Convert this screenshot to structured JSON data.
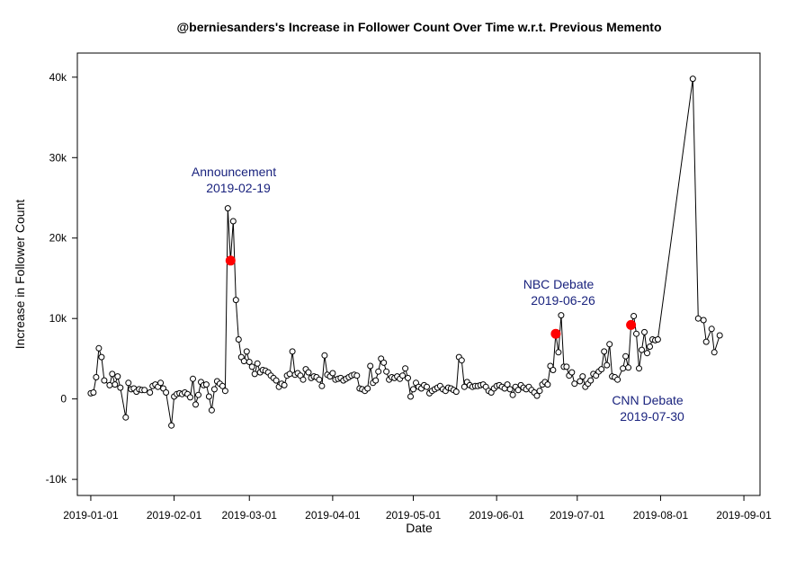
{
  "chart_data": {
    "type": "line",
    "title": "@berniesanders's Increase in Follower Count Over Time w.r.t. Previous Memento",
    "xlabel": "Date",
    "ylabel": "Increase in Follower Count",
    "ylim": [
      -12000,
      43000
    ],
    "xlim": [
      "2018-12-27",
      "2019-09-07"
    ],
    "y_ticks": [
      -10000,
      0,
      10000,
      20000,
      30000,
      40000
    ],
    "y_tick_labels": [
      "-10k",
      "0",
      "10k",
      "20k",
      "30k",
      "40k"
    ],
    "x_ticks": [
      "2019-01-01",
      "2019-02-01",
      "2019-03-01",
      "2019-04-01",
      "2019-05-01",
      "2019-06-01",
      "2019-07-01",
      "2019-08-01",
      "2019-09-01"
    ],
    "line_color": "#000000",
    "highlight_color": "#ff0000",
    "annotation_color": "#1a237e",
    "series": [
      {
        "points": [
          [
            "2019-01-01",
            700
          ],
          [
            "2019-01-02",
            800
          ],
          [
            "2019-01-03",
            2700
          ],
          [
            "2019-01-04",
            6300
          ],
          [
            "2019-01-05",
            5200
          ],
          [
            "2019-01-06",
            2300
          ],
          [
            "2019-01-08",
            1700
          ],
          [
            "2019-01-09",
            3100
          ],
          [
            "2019-01-10",
            1800
          ],
          [
            "2019-01-11",
            2800
          ],
          [
            "2019-01-12",
            1400
          ],
          [
            "2019-01-14",
            -2300
          ],
          [
            "2019-01-15",
            2000
          ],
          [
            "2019-01-16",
            1200
          ],
          [
            "2019-01-17",
            1300
          ],
          [
            "2019-01-18",
            900
          ],
          [
            "2019-01-19",
            1200
          ],
          [
            "2019-01-20",
            1100
          ],
          [
            "2019-01-21",
            1100
          ],
          [
            "2019-01-23",
            800
          ],
          [
            "2019-01-24",
            1600
          ],
          [
            "2019-01-25",
            1800
          ],
          [
            "2019-01-26",
            1500
          ],
          [
            "2019-01-27",
            2000
          ],
          [
            "2019-01-28",
            1300
          ],
          [
            "2019-01-29",
            800
          ],
          [
            "2019-01-31",
            -3300
          ],
          [
            "2019-02-01",
            300
          ],
          [
            "2019-02-02",
            600
          ],
          [
            "2019-02-03",
            700
          ],
          [
            "2019-02-04",
            600
          ],
          [
            "2019-02-05",
            800
          ],
          [
            "2019-02-06",
            600
          ],
          [
            "2019-02-07",
            200
          ],
          [
            "2019-02-08",
            2500
          ],
          [
            "2019-02-09",
            -700
          ],
          [
            "2019-02-10",
            500
          ],
          [
            "2019-02-11",
            2100
          ],
          [
            "2019-02-12",
            1700
          ],
          [
            "2019-02-13",
            1800
          ],
          [
            "2019-02-14",
            300
          ],
          [
            "2019-02-15",
            -1400
          ],
          [
            "2019-02-16",
            1200
          ],
          [
            "2019-02-17",
            2200
          ],
          [
            "2019-02-18",
            1900
          ],
          [
            "2019-02-19",
            1600
          ],
          [
            "2019-02-20",
            1000
          ],
          [
            "2019-02-21",
            23700
          ],
          [
            "2019-02-22",
            17200
          ],
          [
            "2019-02-23",
            22100
          ],
          [
            "2019-02-24",
            12300
          ],
          [
            "2019-02-25",
            7400
          ],
          [
            "2019-02-26",
            5200
          ],
          [
            "2019-02-27",
            4700
          ],
          [
            "2019-02-28",
            5900
          ],
          [
            "2019-03-01",
            4600
          ],
          [
            "2019-03-02",
            4000
          ],
          [
            "2019-03-03",
            3100
          ],
          [
            "2019-03-04",
            4400
          ],
          [
            "2019-03-05",
            3300
          ],
          [
            "2019-03-06",
            3600
          ],
          [
            "2019-03-07",
            3500
          ],
          [
            "2019-03-08",
            3300
          ],
          [
            "2019-03-09",
            2900
          ],
          [
            "2019-03-10",
            2600
          ],
          [
            "2019-03-11",
            2300
          ],
          [
            "2019-03-12",
            1500
          ],
          [
            "2019-03-13",
            1900
          ],
          [
            "2019-03-14",
            1700
          ],
          [
            "2019-03-15",
            2900
          ],
          [
            "2019-03-16",
            3100
          ],
          [
            "2019-03-17",
            5900
          ],
          [
            "2019-03-18",
            3000
          ],
          [
            "2019-03-19",
            3200
          ],
          [
            "2019-03-20",
            2900
          ],
          [
            "2019-03-21",
            2400
          ],
          [
            "2019-03-22",
            3700
          ],
          [
            "2019-03-23",
            3300
          ],
          [
            "2019-03-24",
            2600
          ],
          [
            "2019-03-25",
            2800
          ],
          [
            "2019-03-26",
            2700
          ],
          [
            "2019-03-27",
            2400
          ],
          [
            "2019-03-28",
            1600
          ],
          [
            "2019-03-29",
            5400
          ],
          [
            "2019-03-30",
            3000
          ],
          [
            "2019-03-31",
            2800
          ],
          [
            "2019-04-01",
            3200
          ],
          [
            "2019-04-02",
            2400
          ],
          [
            "2019-04-03",
            2500
          ],
          [
            "2019-04-04",
            2600
          ],
          [
            "2019-04-05",
            2300
          ],
          [
            "2019-04-06",
            2500
          ],
          [
            "2019-04-07",
            2700
          ],
          [
            "2019-04-08",
            2900
          ],
          [
            "2019-04-09",
            3000
          ],
          [
            "2019-04-10",
            2900
          ],
          [
            "2019-04-11",
            1300
          ],
          [
            "2019-04-12",
            1200
          ],
          [
            "2019-04-13",
            1000
          ],
          [
            "2019-04-14",
            1300
          ],
          [
            "2019-04-15",
            4100
          ],
          [
            "2019-04-16",
            2000
          ],
          [
            "2019-04-17",
            2300
          ],
          [
            "2019-04-18",
            3400
          ],
          [
            "2019-04-19",
            5000
          ],
          [
            "2019-04-20",
            4500
          ],
          [
            "2019-04-21",
            3400
          ],
          [
            "2019-04-22",
            2400
          ],
          [
            "2019-04-23",
            2700
          ],
          [
            "2019-04-24",
            2600
          ],
          [
            "2019-04-25",
            2800
          ],
          [
            "2019-04-26",
            2500
          ],
          [
            "2019-04-27",
            2900
          ],
          [
            "2019-04-28",
            3800
          ],
          [
            "2019-04-29",
            2600
          ],
          [
            "2019-04-30",
            300
          ],
          [
            "2019-05-01",
            1200
          ],
          [
            "2019-05-02",
            2000
          ],
          [
            "2019-05-03",
            1500
          ],
          [
            "2019-05-04",
            1300
          ],
          [
            "2019-05-05",
            1700
          ],
          [
            "2019-05-06",
            1500
          ],
          [
            "2019-05-07",
            700
          ],
          [
            "2019-05-08",
            1000
          ],
          [
            "2019-05-09",
            1200
          ],
          [
            "2019-05-10",
            1400
          ],
          [
            "2019-05-11",
            1600
          ],
          [
            "2019-05-12",
            1200
          ],
          [
            "2019-05-13",
            1000
          ],
          [
            "2019-05-14",
            1400
          ],
          [
            "2019-05-15",
            1300
          ],
          [
            "2019-05-16",
            1100
          ],
          [
            "2019-05-17",
            900
          ],
          [
            "2019-05-18",
            5200
          ],
          [
            "2019-05-19",
            4800
          ],
          [
            "2019-05-20",
            1500
          ],
          [
            "2019-05-21",
            2100
          ],
          [
            "2019-05-22",
            1700
          ],
          [
            "2019-05-23",
            1500
          ],
          [
            "2019-05-24",
            1600
          ],
          [
            "2019-05-25",
            1600
          ],
          [
            "2019-05-26",
            1700
          ],
          [
            "2019-05-27",
            1800
          ],
          [
            "2019-05-28",
            1500
          ],
          [
            "2019-05-29",
            1000
          ],
          [
            "2019-05-30",
            800
          ],
          [
            "2019-05-31",
            1300
          ],
          [
            "2019-06-01",
            1600
          ],
          [
            "2019-06-02",
            1700
          ],
          [
            "2019-06-03",
            1500
          ],
          [
            "2019-06-04",
            1300
          ],
          [
            "2019-06-05",
            1800
          ],
          [
            "2019-06-06",
            1200
          ],
          [
            "2019-06-07",
            500
          ],
          [
            "2019-06-08",
            1500
          ],
          [
            "2019-06-09",
            1100
          ],
          [
            "2019-06-10",
            1700
          ],
          [
            "2019-06-11",
            1400
          ],
          [
            "2019-06-12",
            1200
          ],
          [
            "2019-06-13",
            1500
          ],
          [
            "2019-06-14",
            1100
          ],
          [
            "2019-06-15",
            800
          ],
          [
            "2019-06-16",
            400
          ],
          [
            "2019-06-17",
            1000
          ],
          [
            "2019-06-18",
            1800
          ],
          [
            "2019-06-19",
            2100
          ],
          [
            "2019-06-20",
            1800
          ],
          [
            "2019-06-21",
            4100
          ],
          [
            "2019-06-22",
            3600
          ],
          [
            "2019-06-23",
            8100
          ],
          [
            "2019-06-24",
            5800
          ],
          [
            "2019-06-25",
            10400
          ],
          [
            "2019-06-26",
            4000
          ],
          [
            "2019-06-27",
            4000
          ],
          [
            "2019-06-28",
            2900
          ],
          [
            "2019-06-29",
            3300
          ],
          [
            "2019-06-30",
            1900
          ],
          [
            "2019-07-02",
            2200
          ],
          [
            "2019-07-03",
            2800
          ],
          [
            "2019-07-04",
            1500
          ],
          [
            "2019-07-05",
            1900
          ],
          [
            "2019-07-06",
            2300
          ],
          [
            "2019-07-07",
            3100
          ],
          [
            "2019-07-08",
            2900
          ],
          [
            "2019-07-09",
            3400
          ],
          [
            "2019-07-10",
            3700
          ],
          [
            "2019-07-11",
            5900
          ],
          [
            "2019-07-12",
            4200
          ],
          [
            "2019-07-13",
            6800
          ],
          [
            "2019-07-14",
            2800
          ],
          [
            "2019-07-15",
            2700
          ],
          [
            "2019-07-16",
            2400
          ],
          [
            "2019-07-18",
            3800
          ],
          [
            "2019-07-19",
            5300
          ],
          [
            "2019-07-20",
            3900
          ],
          [
            "2019-07-21",
            9200
          ],
          [
            "2019-07-22",
            10300
          ],
          [
            "2019-07-23",
            8100
          ],
          [
            "2019-07-24",
            3800
          ],
          [
            "2019-07-25",
            6100
          ],
          [
            "2019-07-26",
            8300
          ],
          [
            "2019-07-27",
            5700
          ],
          [
            "2019-07-28",
            6500
          ],
          [
            "2019-07-29",
            7400
          ],
          [
            "2019-07-30",
            7300
          ],
          [
            "2019-07-31",
            7400
          ],
          [
            "2019-08-13",
            39800
          ],
          [
            "2019-08-15",
            10000
          ],
          [
            "2019-08-17",
            9800
          ],
          [
            "2019-08-18",
            7100
          ],
          [
            "2019-08-20",
            8700
          ],
          [
            "2019-08-21",
            5800
          ],
          [
            "2019-08-23",
            7900
          ]
        ]
      }
    ],
    "highlights": [
      {
        "x": "2019-02-22",
        "y": 17200
      },
      {
        "x": "2019-06-23",
        "y": 8100
      },
      {
        "x": "2019-07-21",
        "y": 9200
      }
    ],
    "annotations": [
      {
        "lines": [
          "Announcement",
          "2019-02-19"
        ]
      },
      {
        "lines": [
          "NBC Debate",
          "2019-06-26"
        ]
      },
      {
        "lines": [
          "CNN Debate",
          "2019-07-30"
        ]
      }
    ]
  }
}
